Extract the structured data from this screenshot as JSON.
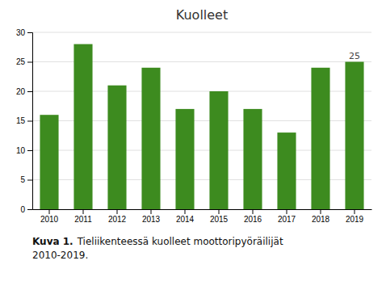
{
  "chart_data": {
    "type": "bar",
    "title": "Kuolleet",
    "categories": [
      "2010",
      "2011",
      "2012",
      "2013",
      "2014",
      "2015",
      "2016",
      "2017",
      "2018",
      "2019"
    ],
    "values": [
      16,
      28,
      21,
      24,
      17,
      20,
      17,
      13,
      24,
      25
    ],
    "color": "#3d8b1f",
    "ylim": [
      0,
      30
    ],
    "yticks": [
      0,
      5,
      10,
      15,
      20,
      25,
      30
    ],
    "grid": true,
    "annotations": [
      {
        "x": "2019",
        "y": 25,
        "text": "25"
      }
    ],
    "caption_label": "Kuva 1.",
    "caption": [
      "Tieliikenteessä kuolleet moottoripyöräilijät",
      "2010-2019."
    ]
  }
}
